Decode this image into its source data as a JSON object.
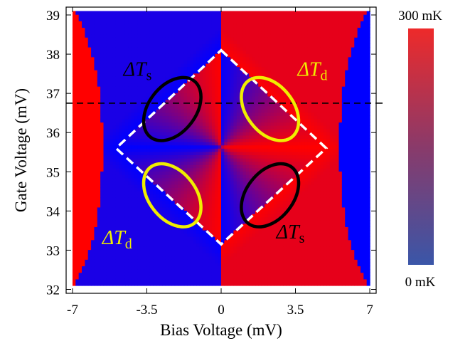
{
  "chart_data": {
    "type": "heatmap",
    "title": "",
    "xlabel": "Bias Voltage (mV)",
    "ylabel": "Gate Voltage (mV)",
    "xlim": [
      -7.3,
      7.3
    ],
    "ylim": [
      31.9,
      39.2
    ],
    "data_extent": {
      "x": [
        -7.0,
        7.0
      ],
      "y": [
        32.1,
        39.1
      ]
    },
    "x_ticks": [
      -7,
      -3.5,
      0,
      3.5,
      7
    ],
    "x_tick_labels": [
      "-7",
      "-3.5",
      "0",
      "3.5",
      "7"
    ],
    "y_ticks": [
      32,
      33,
      34,
      35,
      36,
      37,
      38,
      39
    ],
    "y_tick_labels": [
      "32",
      "33",
      "34",
      "35",
      "36",
      "37",
      "38",
      "39"
    ],
    "colorbar": {
      "min_label": "0 mK",
      "max_label": "300 mK",
      "min_color": "#3a56a8",
      "max_color": "#ee2a2a",
      "mid_color": "#8a3a6a"
    },
    "colors": {
      "red": "#ff0000",
      "blue": "#0000ff"
    },
    "diamond": {
      "style": "white dashed",
      "vertices": [
        {
          "x": 0,
          "y": 38.1
        },
        {
          "x": 4.95,
          "y": 35.6
        },
        {
          "x": 0,
          "y": 33.15
        },
        {
          "x": -4.95,
          "y": 35.6
        }
      ]
    },
    "cut_line": {
      "y": 36.75,
      "style": "black dashed"
    },
    "annotations": [
      {
        "label": "ΔT",
        "subscript": "s",
        "color": "#000000",
        "cx": -2.3,
        "cy": 36.6,
        "text_x": -4.6,
        "text_y": 37.45
      },
      {
        "label": "ΔT",
        "subscript": "d",
        "color": "#f0ee00",
        "cx": 2.3,
        "cy": 36.6,
        "text_x": 3.6,
        "text_y": 37.45
      },
      {
        "label": "ΔT",
        "subscript": "d",
        "color": "#f0ee00",
        "cx": -2.3,
        "cy": 34.4,
        "text_x": -5.6,
        "text_y": 33.15
      },
      {
        "label": "ΔT",
        "subscript": "s",
        "color": "#000000",
        "cx": 2.3,
        "cy": 34.4,
        "text_x": 2.6,
        "text_y": 33.3
      }
    ]
  }
}
